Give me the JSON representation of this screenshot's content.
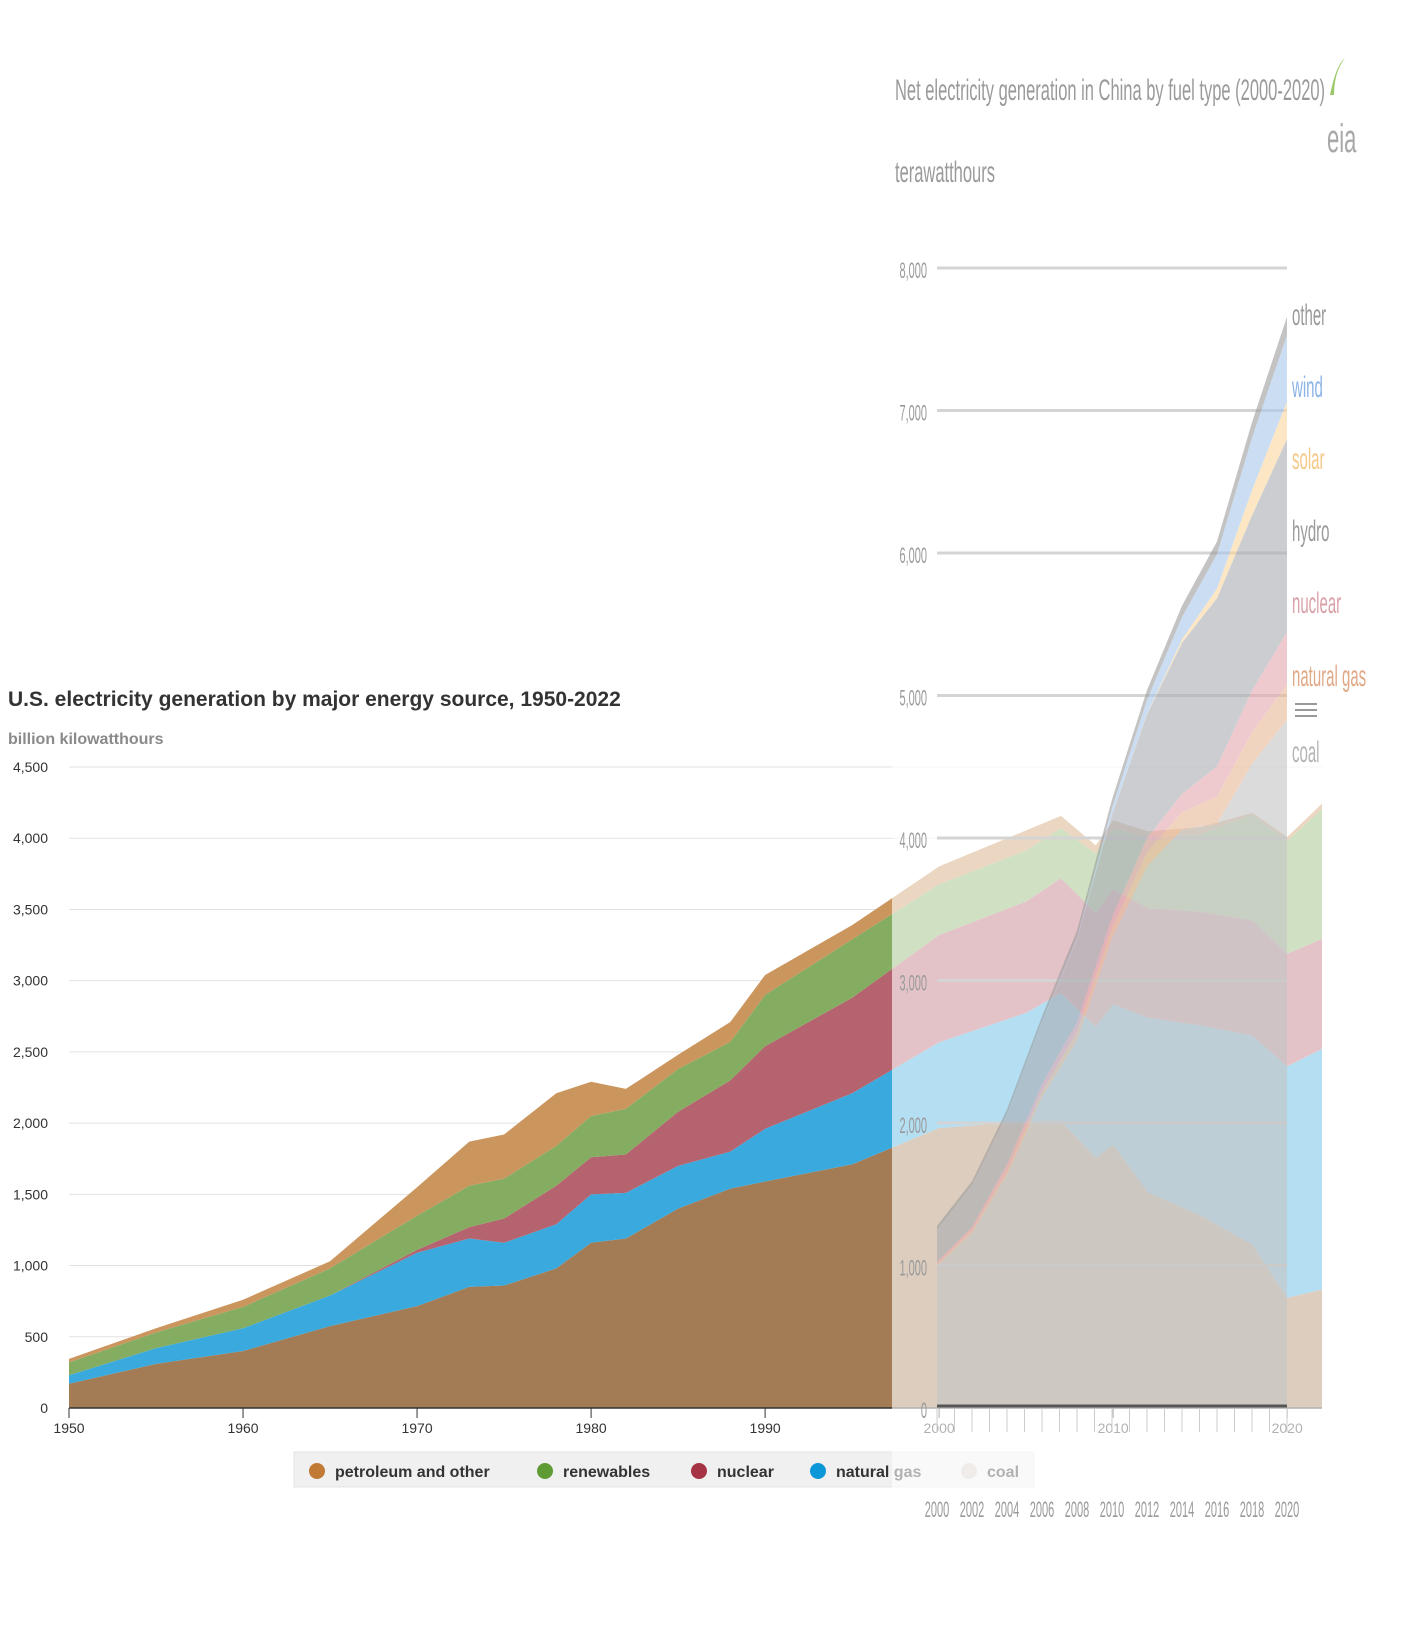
{
  "chart_data": [
    {
      "type": "area",
      "stacked": true,
      "title": "U.S. electricity generation by major energy source, 1950-2022",
      "subtitle": "billion kilowatthours",
      "x": [
        1950,
        1955,
        1960,
        1965,
        1970,
        1973,
        1975,
        1978,
        1980,
        1982,
        1985,
        1988,
        1990,
        1995,
        2000,
        2005,
        2007,
        2009,
        2010,
        2012,
        2015,
        2018,
        2020,
        2022
      ],
      "xlim": [
        1950,
        2022
      ],
      "ylim": [
        0,
        4500
      ],
      "x_ticks": [
        "1950",
        "1960",
        "1970",
        "1980",
        "1990",
        "2000",
        "2010",
        "2020"
      ],
      "y_ticks": [
        "0",
        "500",
        "1,000",
        "1,500",
        "2,000",
        "2,500",
        "3,000",
        "3,500",
        "4,000",
        "4,500"
      ],
      "grid": true,
      "legend_position": "bottom",
      "series": [
        {
          "name": "coal",
          "color": "#a37c55",
          "values": [
            170,
            310,
            400,
            575,
            715,
            850,
            860,
            980,
            1160,
            1190,
            1400,
            1540,
            1590,
            1710,
            1966,
            2013,
            2016,
            1756,
            1847,
            1514,
            1352,
            1146,
            774,
            832
          ]
        },
        {
          "name": "natural gas",
          "color": "#3aa9dd",
          "values": [
            60,
            110,
            160,
            215,
            375,
            340,
            300,
            310,
            340,
            320,
            300,
            260,
            370,
            500,
            601,
            761,
            897,
            921,
            988,
            1226,
            1335,
            1469,
            1624,
            1689
          ]
        },
        {
          "name": "nuclear",
          "color": "#b5636e",
          "values": [
            0,
            0,
            0,
            0,
            20,
            80,
            170,
            270,
            260,
            270,
            380,
            500,
            580,
            670,
            754,
            782,
            806,
            799,
            807,
            769,
            797,
            807,
            790,
            772
          ]
        },
        {
          "name": "renewables",
          "color": "#84ad62",
          "values": [
            90,
            110,
            150,
            190,
            240,
            290,
            280,
            280,
            290,
            320,
            300,
            270,
            360,
            410,
            356,
            358,
            352,
            417,
            428,
            495,
            545,
            742,
            792,
            913
          ]
        },
        {
          "name": "petroleum and other",
          "color": "#cb955e",
          "values": [
            25,
            30,
            50,
            50,
            200,
            310,
            310,
            370,
            240,
            140,
            100,
            140,
            140,
            100,
            125,
            141,
            86,
            57,
            55,
            44,
            49,
            14,
            29,
            37
          ]
        }
      ],
      "legend": [
        {
          "label": "petroleum and other",
          "color": "#c07a35"
        },
        {
          "label": "renewables",
          "color": "#5f9b35"
        },
        {
          "label": "nuclear",
          "color": "#a63343"
        },
        {
          "label": "natural gas",
          "color": "#0c97d9"
        },
        {
          "label": "coal",
          "color": "#d6ccc4"
        }
      ]
    },
    {
      "type": "area",
      "stacked": true,
      "title": "Net electricity generation in China by fuel type (2000-2020)",
      "subtitle": "terawatthours",
      "x": [
        2000,
        2002,
        2004,
        2006,
        2008,
        2010,
        2012,
        2014,
        2016,
        2018,
        2020
      ],
      "xlim": [
        2000,
        2020
      ],
      "ylim": [
        0,
        8000
      ],
      "x_ticks": [
        "2000",
        "2002",
        "2004",
        "2006",
        "2008",
        "2010",
        "2012",
        "2014",
        "2016",
        "2018",
        "2020"
      ],
      "y_ticks": [
        "0",
        "1,000",
        "2,000",
        "3,000",
        "4,000",
        "5,000",
        "6,000",
        "7,000",
        "8,000"
      ],
      "grid": true,
      "series": [
        {
          "name": "coal",
          "color": "#c4c4c4",
          "values": [
            1000,
            1230,
            1640,
            2180,
            2580,
            3300,
            3800,
            4060,
            4100,
            4520,
            4830
          ]
        },
        {
          "name": "natural gas",
          "color": "#e9b897",
          "values": [
            10,
            15,
            20,
            40,
            60,
            70,
            100,
            120,
            190,
            220,
            250
          ]
        },
        {
          "name": "nuclear",
          "color": "#e3a6ae",
          "values": [
            17,
            25,
            50,
            55,
            68,
            74,
            98,
            130,
            213,
            294,
            366
          ]
        },
        {
          "name": "hydro",
          "color": "#a9adb4",
          "values": [
            220,
            290,
            350,
            430,
            580,
            720,
            870,
            1060,
            1180,
            1230,
            1355
          ]
        },
        {
          "name": "solar",
          "color": "#fbd79c",
          "values": [
            0,
            0,
            0,
            0,
            0,
            1,
            4,
            24,
            67,
            177,
            261
          ]
        },
        {
          "name": "wind",
          "color": "#a8c7ea",
          "values": [
            1,
            1,
            1,
            4,
            13,
            45,
            96,
            156,
            241,
            366,
            467
          ]
        },
        {
          "name": "other",
          "color": "#9c9c9c",
          "values": [
            30,
            30,
            35,
            40,
            50,
            60,
            70,
            80,
            90,
            110,
            130
          ]
        }
      ],
      "labels": [
        {
          "label": "other",
          "color": "#9a9a9a"
        },
        {
          "label": "wind",
          "color": "#8ab4e6"
        },
        {
          "label": "solar",
          "color": "#f5c887"
        },
        {
          "label": "hydro",
          "color": "#9a9a9a"
        },
        {
          "label": "nuclear",
          "color": "#d9a0a8"
        },
        {
          "label": "natural gas",
          "color": "#e0a988"
        },
        {
          "label": "coal",
          "color": "#b4b4b4"
        }
      ],
      "logo": "eia"
    }
  ]
}
